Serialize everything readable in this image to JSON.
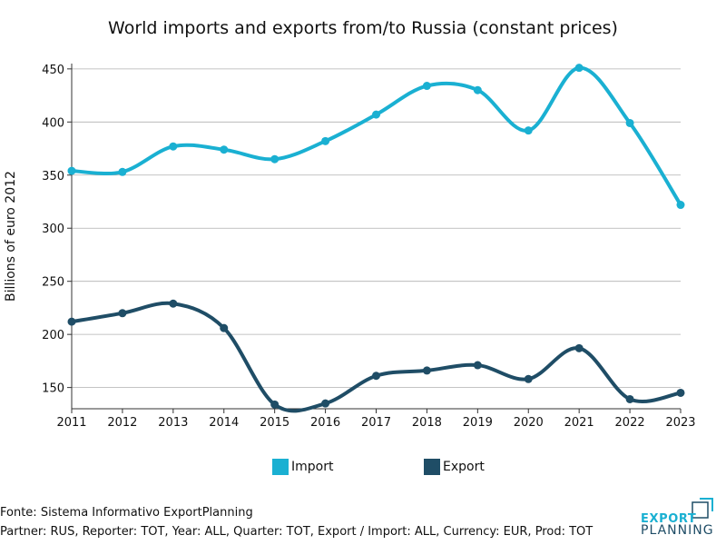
{
  "chart_data": {
    "type": "line",
    "title": "World imports and exports from/to Russia (constant prices)",
    "xlabel": "",
    "ylabel": "Billions of euro 2012",
    "x": [
      2011,
      2012,
      2013,
      2014,
      2015,
      2016,
      2017,
      2018,
      2019,
      2020,
      2021,
      2022,
      2023
    ],
    "xlim": [
      2011,
      2023
    ],
    "ylim": [
      130,
      455
    ],
    "yticks": [
      150,
      200,
      250,
      300,
      350,
      400,
      450
    ],
    "grid": true,
    "legend": "bottom",
    "series": [
      {
        "name": "Import",
        "color": "#1ab0d2",
        "values": [
          354,
          353,
          377,
          374,
          365,
          382,
          407,
          434,
          430,
          392,
          451,
          399,
          322
        ]
      },
      {
        "name": "Export",
        "color": "#1f4d66",
        "values": [
          212,
          220,
          229,
          206,
          134,
          135,
          161,
          166,
          171,
          158,
          187,
          139,
          145
        ]
      }
    ]
  },
  "footer": {
    "source": "Fonte: Sistema Informativo ExportPlanning",
    "params": "Partner: RUS, Reporter: TOT, Year: ALL, Quarter: TOT, Export / Import: ALL, Currency: EUR, Prod: TOT"
  },
  "logo": {
    "word1": "EXPORT",
    "word2": "PLANNING",
    "color_primary": "#1ab0d2",
    "color_secondary": "#1f4d66"
  }
}
